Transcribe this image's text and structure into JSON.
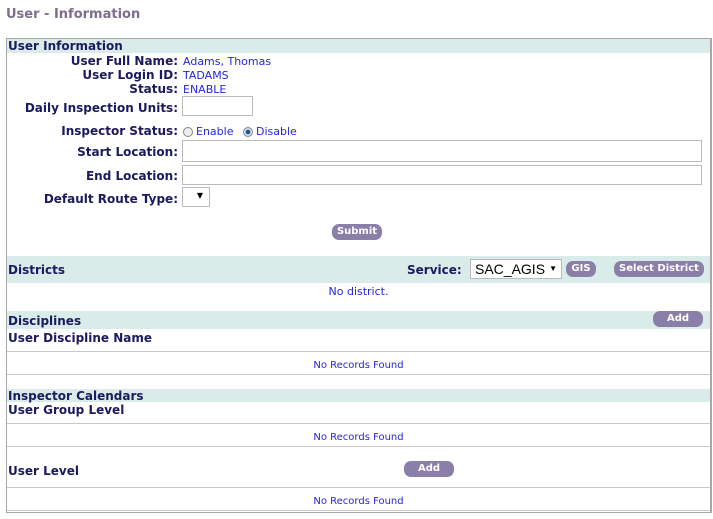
{
  "page_title": "User - Information",
  "user_info": {
    "header": "User Information",
    "full_name_label": "User Full Name:",
    "full_name": "Adams, Thomas",
    "login_label": "User Login ID:",
    "login": "TADAMS",
    "status_label": "Status:",
    "status": "ENABLE",
    "daily_units_label": "Daily Inspection Units:",
    "daily_units": "",
    "inspector_status_label": "Inspector Status:",
    "enable_label": "Enable",
    "disable_label": "Disable",
    "inspector_status_selected": "Disable",
    "start_label": "Start Location:",
    "start": "",
    "end_label": "End Location:",
    "end": "",
    "route_label": "Default Route Type:",
    "route": "",
    "submit": "Submit"
  },
  "districts": {
    "header": "Districts",
    "service_label": "Service:",
    "service": "SAC_AGIS",
    "gis": "GIS",
    "select_district": "Select District",
    "empty": "No district."
  },
  "disciplines": {
    "header": "Disciplines",
    "add": "Add",
    "column": "User Discipline Name",
    "empty": "No Records Found"
  },
  "calendars": {
    "header": "Inspector Calendars",
    "group_level": "User Group Level",
    "group_empty": "No Records Found",
    "user_level": "User Level",
    "add": "Add",
    "user_empty": "No Records Found"
  },
  "colors": {
    "band": "#d9ecea",
    "button": "#8a7fa9",
    "label": "#1b1a5e",
    "value": "#2525e0"
  }
}
